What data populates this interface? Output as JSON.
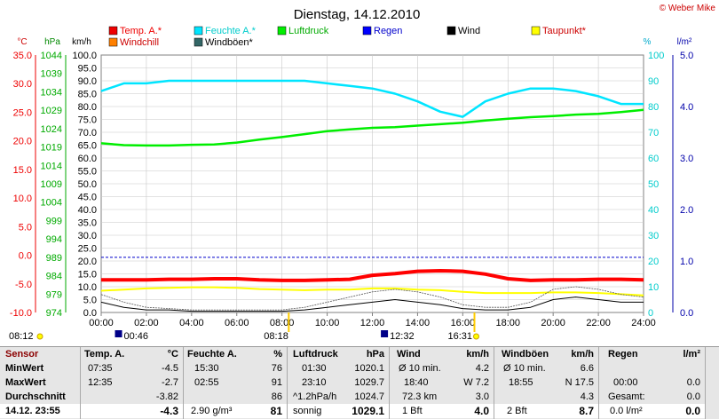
{
  "header": {
    "title": "Dienstag, 14.12.2010",
    "brand": "© Weber Mike"
  },
  "units": {
    "celsius": "°C",
    "hpa": "hPa",
    "kmh": "km/h",
    "percent": "%",
    "rain": "l/m²"
  },
  "legend": [
    {
      "name": "Temp. A.*",
      "color": "#ee0000",
      "box": "#ee0000",
      "label_color": "#ee0000"
    },
    {
      "name": "Feuchte A.*",
      "color": "#00cccc",
      "box": "#00e5ff",
      "label_color": "#00cccc"
    },
    {
      "name": "Luftdruck",
      "color": "#00aa00",
      "box": "#00ee00",
      "label_color": "#00aa00"
    },
    {
      "name": "Regen",
      "color": "#0000cc",
      "box": "#0000ff",
      "label_color": "#0000cc"
    },
    {
      "name": "Wind",
      "color": "#000000",
      "box": "#000000",
      "label_color": "#000000"
    },
    {
      "name": "Taupunkt*",
      "color": "#cc0000",
      "box": "#ffff00",
      "label_color": "#cc0000"
    },
    {
      "name": "Windchill",
      "color": "#cc0000",
      "box": "#ff8000",
      "label_color": "#cc0000"
    },
    {
      "name": "Windböen*",
      "color": "#000000",
      "box": "#336666",
      "label_color": "#000000"
    }
  ],
  "axes": {
    "temp": [
      "35.0",
      "30.0",
      "25.0",
      "20.0",
      "15.0",
      "10.0",
      "5.0",
      "0.0",
      "-5.0",
      "-10.0"
    ],
    "hpa": [
      "1044",
      "1039",
      "1034",
      "1029",
      "1024",
      "1019",
      "1014",
      "1009",
      "1004",
      "999",
      "994",
      "989",
      "984",
      "979",
      "974"
    ],
    "kmh": [
      "100.0",
      "95.0",
      "90.0",
      "85.0",
      "80.0",
      "75.0",
      "70.0",
      "65.0",
      "60.0",
      "55.0",
      "50.0",
      "45.0",
      "40.0",
      "35.0",
      "30.0",
      "25.0",
      "20.0",
      "15.0",
      "10.0",
      "5.0",
      "0.0"
    ],
    "percent": [
      "100",
      "90",
      "80",
      "70",
      "60",
      "50",
      "40",
      "30",
      "20",
      "10",
      "0"
    ],
    "rain": [
      "5.0",
      "4.0",
      "3.0",
      "2.0",
      "1.0",
      "0.0"
    ],
    "x": [
      "00:00",
      "02:00",
      "04:00",
      "06:00",
      "08:00",
      "10:00",
      "12:00",
      "14:00",
      "16:00",
      "18:00",
      "20:00",
      "22:00",
      "24:00"
    ]
  },
  "sun_markers": {
    "sunrise": "08:12",
    "sunset": "16:31",
    "rise_marked": "08:18",
    "noon": "12:32",
    "moon": "00:46"
  },
  "chart_data": {
    "type": "line",
    "x": [
      "00:00",
      "01:00",
      "02:00",
      "03:00",
      "04:00",
      "05:00",
      "06:00",
      "07:00",
      "08:00",
      "09:00",
      "10:00",
      "11:00",
      "12:00",
      "13:00",
      "14:00",
      "15:00",
      "16:00",
      "17:00",
      "18:00",
      "19:00",
      "20:00",
      "21:00",
      "22:00",
      "23:00",
      "24:00"
    ],
    "xlim": [
      "00:00",
      "24:00"
    ],
    "series": [
      {
        "name": "Temp. A.*",
        "axis": "°C",
        "color": "#ff0000",
        "values": [
          -4.3,
          -4.3,
          -4.3,
          -4.2,
          -4.2,
          -4.1,
          -4.1,
          -4.3,
          -4.4,
          -4.4,
          -4.3,
          -4.2,
          -3.5,
          -3.2,
          -2.8,
          -2.7,
          -2.8,
          -3.3,
          -4.1,
          -4.4,
          -4.3,
          -4.3,
          -4.2,
          -4.2,
          -4.3
        ]
      },
      {
        "name": "Feuchte A.*",
        "axis": "%",
        "color": "#00e5ff",
        "values": [
          86,
          89,
          89,
          90,
          90,
          90,
          90,
          90,
          90,
          90,
          89,
          88,
          87,
          85,
          82,
          78,
          76,
          82,
          85,
          87,
          87,
          86,
          84,
          81,
          81
        ]
      },
      {
        "name": "Luftdruck",
        "axis": "hPa",
        "color": "#00ee00",
        "values": [
          1020,
          1019.5,
          1019.4,
          1019.4,
          1019.6,
          1019.7,
          1020.2,
          1021,
          1021.7,
          1022.5,
          1023.3,
          1023.8,
          1024.2,
          1024.4,
          1024.8,
          1025.2,
          1025.6,
          1026.2,
          1026.7,
          1027.1,
          1027.4,
          1027.8,
          1028,
          1028.5,
          1029.1
        ]
      },
      {
        "name": "Taupunkt*",
        "axis": "°C",
        "color": "#ffff00",
        "values": [
          -6.2,
          -6,
          -5.8,
          -5.7,
          -5.6,
          -5.6,
          -5.7,
          -5.9,
          -6,
          -6.1,
          -6,
          -6,
          -5.8,
          -5.8,
          -6,
          -6.1,
          -6.4,
          -6.6,
          -6.6,
          -6.6,
          -6.5,
          -6.5,
          -6.6,
          -6.8,
          -7
        ]
      },
      {
        "name": "Wind",
        "axis": "km/h",
        "color": "#000000",
        "values": [
          4,
          2,
          1,
          1,
          0.5,
          0.5,
          0.5,
          0.5,
          0.5,
          1,
          2,
          3,
          4,
          5,
          4,
          3,
          1.5,
          1,
          1,
          2,
          5,
          6,
          5,
          4,
          4
        ]
      },
      {
        "name": "Windböen*",
        "axis": "km/h",
        "color": "#555555",
        "values": [
          7,
          4,
          2,
          1.5,
          1,
          1,
          1,
          1,
          1,
          2,
          4,
          6,
          8,
          9,
          8,
          6,
          3,
          2,
          2,
          4,
          9,
          10,
          9,
          7,
          6
        ]
      }
    ],
    "reference_line": {
      "axis": "hPa",
      "value": 989,
      "color": "#0000cc"
    },
    "ylim_temp": [
      -10,
      35
    ],
    "ylim_hpa": [
      974,
      1044
    ],
    "ylim_kmh": [
      0,
      100
    ],
    "ylim_percent": [
      0,
      100
    ],
    "ylim_rain": [
      0,
      5
    ]
  },
  "table": {
    "sensor": {
      "title": "Sensor",
      "rows": [
        "MinWert",
        "MaxWert",
        "Durchschnitt"
      ],
      "current": "14.12. 23:55"
    },
    "temp": {
      "title": "Temp. A.",
      "unit": "°C",
      "rows": [
        [
          "07:35",
          "-4.5"
        ],
        [
          "12:35",
          "-2.7"
        ],
        [
          "",
          "-3.82"
        ]
      ],
      "current": "-4.3"
    },
    "feuchte": {
      "title": "Feuchte A.",
      "unit": "%",
      "rows": [
        [
          "15:30",
          "76"
        ],
        [
          "02:55",
          "91"
        ],
        [
          "",
          "86"
        ]
      ],
      "current_label": "2.90 g/m³",
      "current": "81"
    },
    "luftdruck": {
      "title": "Luftdruck",
      "unit": "hPa",
      "rows": [
        [
          "01:30",
          "1020.1"
        ],
        [
          "23:10",
          "1029.7"
        ],
        [
          "^1.2hPa/h",
          "1024.7"
        ]
      ],
      "current_label": "sonnig",
      "current": "1029.1"
    },
    "wind": {
      "title": "Wind",
      "unit": "km/h",
      "rows": [
        [
          "Ø 10 min.",
          "4.2"
        ],
        [
          "18:40",
          "W 7.2"
        ],
        [
          "72.3 km",
          "3.0"
        ]
      ],
      "current_label": "1 Bft",
      "current": "4.0"
    },
    "windboeen": {
      "title": "Windböen",
      "unit": "km/h",
      "rows": [
        [
          "Ø 10 min.",
          "6.6"
        ],
        [
          "18:55",
          "N 17.5"
        ],
        [
          "",
          "4.3"
        ]
      ],
      "current_label": "2 Bft",
      "current": "8.7"
    },
    "regen": {
      "title": "Regen",
      "unit": "l/m²",
      "rows": [
        [
          "",
          ""
        ],
        [
          "00:00",
          "0.0"
        ],
        [
          "Gesamt:",
          "0.0"
        ]
      ],
      "current_label": "0.0 l/m²",
      "current": "0.0"
    }
  }
}
